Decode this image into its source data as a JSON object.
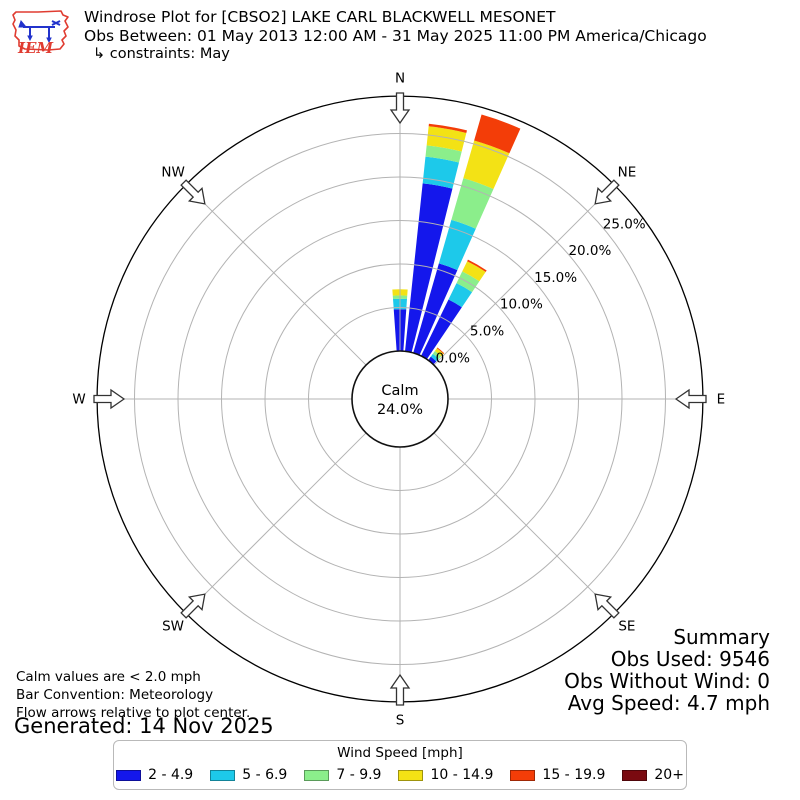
{
  "header": {
    "logo_text": "IEM",
    "title": "Windrose Plot for [CBSO2] LAKE CARL BLACKWELL MESONET",
    "obs_between": "Obs Between: 01 May 2013 12:00 AM - 31 May 2025 11:00 PM America/Chicago",
    "constraints": "↳ constraints: May"
  },
  "chart_data": {
    "type": "windrose",
    "units": "mph",
    "calm": {
      "label": "Calm",
      "percent_text": "24.0%"
    },
    "rings_percent": [
      0,
      5,
      10,
      15,
      20,
      25
    ],
    "ring_labels": [
      "0.0%",
      "5.0%",
      "10.0%",
      "15.0%",
      "20.0%",
      "25.0%"
    ],
    "rmax_percent": 29.3,
    "compass_points": [
      {
        "label": "N",
        "deg": 0
      },
      {
        "label": "NE",
        "deg": 45
      },
      {
        "label": "E",
        "deg": 90
      },
      {
        "label": "SE",
        "deg": 135
      },
      {
        "label": "S",
        "deg": 180
      },
      {
        "label": "SW",
        "deg": 225
      },
      {
        "label": "W",
        "deg": 270
      },
      {
        "label": "NW",
        "deg": 315
      }
    ],
    "speed_bins": [
      {
        "label": "2 - 4.9",
        "color": "#1417ec"
      },
      {
        "label": "5 - 6.9",
        "color": "#1dc9ea"
      },
      {
        "label": "7 - 9.9",
        "color": "#8bee8b"
      },
      {
        "label": "10 - 14.9",
        "color": "#f3e215"
      },
      {
        "label": "15 - 19.9",
        "color": "#f33d08"
      },
      {
        "label": "20+",
        "color": "#7a0a10"
      }
    ],
    "bars": [
      {
        "dir_deg": 0,
        "segments_percent": [
          4.8,
          1.2,
          0.4,
          0.7,
          0,
          0
        ]
      },
      {
        "dir_deg": 10,
        "segments_percent": [
          19.4,
          3.1,
          1.3,
          2.2,
          0.3,
          0
        ]
      },
      {
        "dir_deg": 20,
        "segments_percent": [
          10.7,
          5.2,
          5.0,
          4.5,
          3.1,
          0
        ]
      },
      {
        "dir_deg": 30,
        "segments_percent": [
          7.2,
          2.1,
          1.5,
          1.3,
          0.2,
          0
        ]
      },
      {
        "dir_deg": 40,
        "segments_percent": [
          0.5,
          0.4,
          0.4,
          0.4,
          0.1,
          0
        ]
      }
    ]
  },
  "summary": {
    "title": "Summary",
    "obs_used": "Obs Used: 9546",
    "obs_without_wind": "Obs Without Wind: 0",
    "avg_speed": "Avg Speed: 4.7 mph"
  },
  "footnotes": {
    "calm_note": "Calm values are < 2.0 mph",
    "convention_note": "Bar Convention: Meteorology",
    "arrows_note": "Flow arrows relative to plot center.",
    "generated": "Generated: 14 Nov 2025"
  },
  "legend": {
    "title": "Wind Speed [mph]"
  }
}
